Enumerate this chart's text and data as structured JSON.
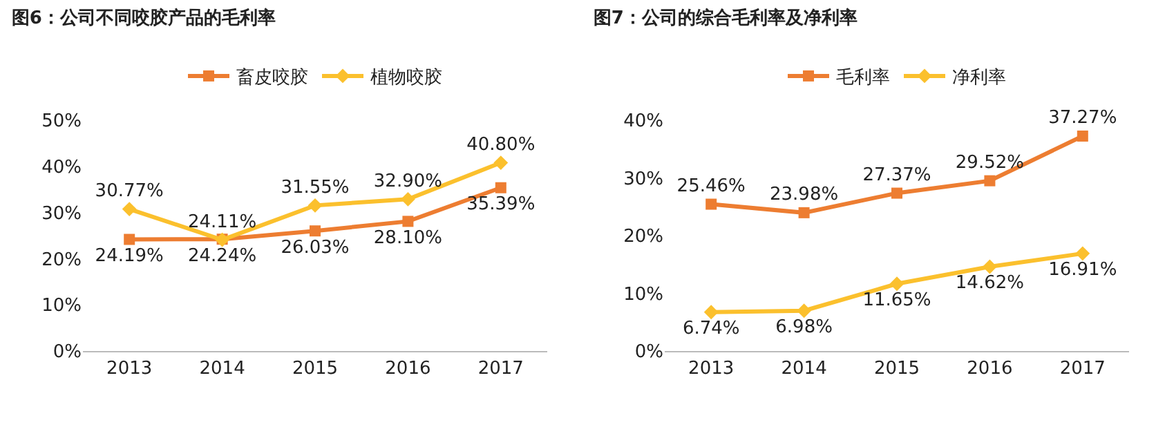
{
  "chart_data": [
    {
      "type": "line",
      "title": "图6：公司不同咬胶产品的毛利率",
      "categories": [
        "2013",
        "2014",
        "2015",
        "2016",
        "2017"
      ],
      "series": [
        {
          "name": "畜皮咬胶",
          "color": "#ed7d31",
          "marker": "square",
          "values": [
            24.19,
            24.24,
            26.03,
            28.1,
            35.39
          ],
          "value_labels": [
            "24.19%",
            "24.24%",
            "26.03%",
            "28.10%",
            "35.39%"
          ]
        },
        {
          "name": "植物咬胶",
          "color": "#fbc02d",
          "marker": "diamond",
          "values": [
            30.77,
            24.11,
            31.55,
            32.9,
            40.8
          ],
          "value_labels": [
            "30.77%",
            "24.11%",
            "31.55%",
            "32.90%",
            "40.80%"
          ]
        }
      ],
      "ylim": [
        0,
        50
      ],
      "yticks": [
        {
          "value": 0,
          "label": "0%"
        },
        {
          "value": 10,
          "label": "10%"
        },
        {
          "value": 20,
          "label": "20%"
        },
        {
          "value": 30,
          "label": "30%"
        },
        {
          "value": 40,
          "label": "40%"
        },
        {
          "value": 50,
          "label": "50%"
        }
      ],
      "grid": false,
      "legend": "top"
    },
    {
      "type": "line",
      "title": "图7：公司的综合毛利率及净利率",
      "categories": [
        "2013",
        "2014",
        "2015",
        "2016",
        "2017"
      ],
      "series": [
        {
          "name": "毛利率",
          "color": "#ed7d31",
          "marker": "square",
          "values": [
            25.46,
            23.98,
            27.37,
            29.52,
            37.27
          ],
          "value_labels": [
            "25.46%",
            "23.98%",
            "27.37%",
            "29.52%",
            "37.27%"
          ]
        },
        {
          "name": "净利率",
          "color": "#fbc02d",
          "marker": "diamond",
          "values": [
            6.74,
            6.98,
            11.65,
            14.62,
            16.91
          ],
          "value_labels": [
            "6.74%",
            "6.98%",
            "11.65%",
            "14.62%",
            "16.91%"
          ]
        }
      ],
      "ylim": [
        0,
        40
      ],
      "yticks": [
        {
          "value": 0,
          "label": "0%"
        },
        {
          "value": 10,
          "label": "10%"
        },
        {
          "value": 20,
          "label": "20%"
        },
        {
          "value": 30,
          "label": "30%"
        },
        {
          "value": 40,
          "label": "40%"
        }
      ],
      "grid": false,
      "legend": "top"
    }
  ]
}
